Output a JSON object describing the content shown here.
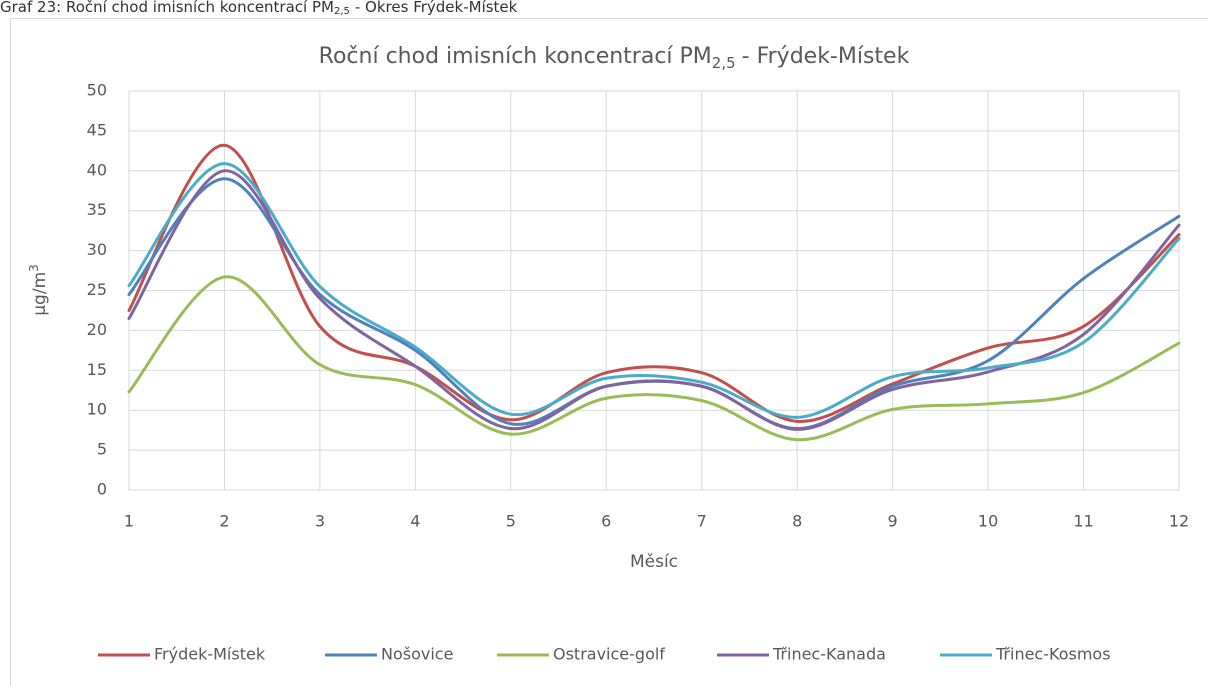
{
  "chart_data": {
    "type": "line",
    "caption": [
      "Graf 23: Roční chod imisních koncentrací PM",
      "2,5",
      "- Okres Frýdek-Místek"
    ],
    "title": [
      "Roční chod imisních koncentrací PM",
      "2,5",
      "- Frýdek-Místek"
    ],
    "x_label": "Měsíc",
    "y_label": [
      "µg/m",
      "3"
    ],
    "x": [
      1,
      2,
      3,
      4,
      5,
      6,
      7,
      8,
      9,
      10,
      11,
      12
    ],
    "xlim": [
      1,
      12
    ],
    "xticks": [
      1,
      2,
      3,
      4,
      5,
      6,
      7,
      8,
      9,
      10,
      11,
      12
    ],
    "ylim": [
      0,
      50
    ],
    "yticks": [
      0,
      5,
      10,
      15,
      20,
      25,
      30,
      35,
      40,
      45,
      50
    ],
    "grid": true,
    "smooth": true,
    "legend": "bottom",
    "series": [
      {
        "name": "Frýdek-Místek",
        "color": "#c0504d",
        "values": [
          22.5,
          43.2,
          20.5,
          15.5,
          8.8,
          14.7,
          14.7,
          8.6,
          13.3,
          17.8,
          20.5,
          32.0
        ]
      },
      {
        "name": "Nošovice",
        "color": "#4f81bd",
        "values": [
          24.5,
          39.0,
          24.5,
          17.5,
          8.3,
          13.0,
          13.0,
          7.7,
          13.0,
          16.2,
          26.5,
          34.3
        ]
      },
      {
        "name": "Ostravice-golf",
        "color": "#9bbb59",
        "values": [
          12.3,
          26.7,
          15.7,
          13.2,
          7.0,
          11.5,
          11.2,
          6.3,
          10.1,
          10.8,
          12.2,
          18.4
        ]
      },
      {
        "name": "Třinec-Kanada",
        "color": "#8064a2",
        "values": [
          21.5,
          40.0,
          24.0,
          15.5,
          7.7,
          13.0,
          13.0,
          7.6,
          12.6,
          14.8,
          19.5,
          33.2
        ]
      },
      {
        "name": "Třinec-Kosmos",
        "color": "#4bacc6",
        "values": [
          25.6,
          40.9,
          25.5,
          17.9,
          9.5,
          14.0,
          13.5,
          9.1,
          14.2,
          15.3,
          18.5,
          31.5
        ]
      }
    ]
  }
}
